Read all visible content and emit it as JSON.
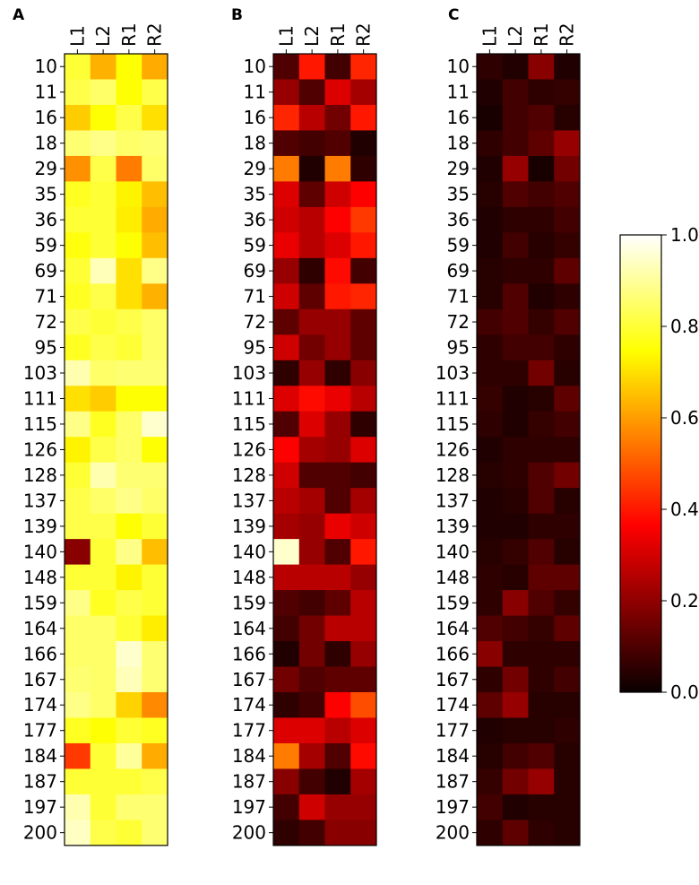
{
  "chart_data": [
    {
      "type": "heatmap",
      "panel_label": "A",
      "columns": [
        "L1",
        "L2",
        "R1",
        "R2"
      ],
      "rows": [
        "10",
        "11",
        "16",
        "18",
        "29",
        "35",
        "36",
        "59",
        "69",
        "71",
        "72",
        "95",
        "103",
        "111",
        "115",
        "126",
        "128",
        "137",
        "139",
        "140",
        "148",
        "159",
        "164",
        "166",
        "167",
        "174",
        "177",
        "184",
        "187",
        "197",
        "200"
      ],
      "values": [
        [
          0.8,
          0.63,
          0.75,
          0.62
        ],
        [
          0.82,
          0.85,
          0.75,
          0.82
        ],
        [
          0.67,
          0.75,
          0.82,
          0.7
        ],
        [
          0.86,
          0.88,
          0.85,
          0.86
        ],
        [
          0.58,
          0.82,
          0.55,
          0.85
        ],
        [
          0.78,
          0.8,
          0.73,
          0.65
        ],
        [
          0.8,
          0.8,
          0.72,
          0.62
        ],
        [
          0.76,
          0.8,
          0.75,
          0.65
        ],
        [
          0.8,
          0.93,
          0.7,
          0.88
        ],
        [
          0.78,
          0.82,
          0.7,
          0.63
        ],
        [
          0.82,
          0.8,
          0.82,
          0.85
        ],
        [
          0.78,
          0.82,
          0.8,
          0.85
        ],
        [
          0.92,
          0.85,
          0.86,
          0.86
        ],
        [
          0.7,
          0.67,
          0.75,
          0.75
        ],
        [
          0.88,
          0.78,
          0.85,
          0.95
        ],
        [
          0.73,
          0.82,
          0.85,
          0.75
        ],
        [
          0.8,
          0.92,
          0.86,
          0.86
        ],
        [
          0.82,
          0.85,
          0.88,
          0.85
        ],
        [
          0.82,
          0.82,
          0.75,
          0.8
        ],
        [
          0.18,
          0.8,
          0.88,
          0.65
        ],
        [
          0.8,
          0.8,
          0.73,
          0.8
        ],
        [
          0.88,
          0.78,
          0.82,
          0.8
        ],
        [
          0.85,
          0.85,
          0.8,
          0.72
        ],
        [
          0.85,
          0.85,
          0.95,
          0.86
        ],
        [
          0.86,
          0.85,
          0.93,
          0.86
        ],
        [
          0.88,
          0.85,
          0.68,
          0.57
        ],
        [
          0.78,
          0.75,
          0.8,
          0.78
        ],
        [
          0.45,
          0.8,
          0.9,
          0.62
        ],
        [
          0.8,
          0.8,
          0.8,
          0.82
        ],
        [
          0.92,
          0.8,
          0.86,
          0.86
        ],
        [
          0.94,
          0.82,
          0.8,
          0.86
        ]
      ]
    },
    {
      "type": "heatmap",
      "panel_label": "B",
      "columns": [
        "L1",
        "L2",
        "R1",
        "R2"
      ],
      "rows": [
        "10",
        "11",
        "16",
        "18",
        "29",
        "35",
        "36",
        "59",
        "69",
        "71",
        "72",
        "95",
        "103",
        "111",
        "115",
        "126",
        "128",
        "137",
        "139",
        "140",
        "148",
        "159",
        "164",
        "166",
        "167",
        "174",
        "177",
        "184",
        "187",
        "197",
        "200"
      ],
      "values": [
        [
          0.1,
          0.4,
          0.08,
          0.42
        ],
        [
          0.2,
          0.1,
          0.3,
          0.22
        ],
        [
          0.42,
          0.25,
          0.15,
          0.4
        ],
        [
          0.1,
          0.08,
          0.1,
          0.03
        ],
        [
          0.55,
          0.03,
          0.55,
          0.05
        ],
        [
          0.3,
          0.12,
          0.28,
          0.35
        ],
        [
          0.28,
          0.25,
          0.35,
          0.45
        ],
        [
          0.32,
          0.25,
          0.3,
          0.4
        ],
        [
          0.2,
          0.05,
          0.38,
          0.08
        ],
        [
          0.28,
          0.12,
          0.4,
          0.42
        ],
        [
          0.12,
          0.2,
          0.2,
          0.12
        ],
        [
          0.28,
          0.15,
          0.2,
          0.12
        ],
        [
          0.05,
          0.2,
          0.05,
          0.18
        ],
        [
          0.3,
          0.38,
          0.32,
          0.25
        ],
        [
          0.1,
          0.3,
          0.2,
          0.05
        ],
        [
          0.35,
          0.22,
          0.2,
          0.3
        ],
        [
          0.28,
          0.1,
          0.1,
          0.08
        ],
        [
          0.25,
          0.22,
          0.1,
          0.22
        ],
        [
          0.22,
          0.2,
          0.32,
          0.28
        ],
        [
          0.95,
          0.2,
          0.1,
          0.4
        ],
        [
          0.25,
          0.25,
          0.25,
          0.2
        ],
        [
          0.1,
          0.08,
          0.12,
          0.25
        ],
        [
          0.08,
          0.15,
          0.25,
          0.25
        ],
        [
          0.03,
          0.15,
          0.05,
          0.2
        ],
        [
          0.15,
          0.1,
          0.12,
          0.12
        ],
        [
          0.05,
          0.08,
          0.35,
          0.48
        ],
        [
          0.3,
          0.3,
          0.25,
          0.3
        ],
        [
          0.55,
          0.22,
          0.1,
          0.38
        ],
        [
          0.18,
          0.08,
          0.03,
          0.22
        ],
        [
          0.08,
          0.28,
          0.2,
          0.2
        ],
        [
          0.05,
          0.08,
          0.18,
          0.18
        ]
      ]
    },
    {
      "type": "heatmap",
      "panel_label": "C",
      "columns": [
        "L1",
        "L2",
        "R1",
        "R2"
      ],
      "rows": [
        "10",
        "11",
        "16",
        "18",
        "29",
        "35",
        "36",
        "59",
        "69",
        "71",
        "72",
        "95",
        "103",
        "111",
        "115",
        "126",
        "128",
        "137",
        "139",
        "140",
        "148",
        "159",
        "164",
        "166",
        "167",
        "174",
        "177",
        "184",
        "187",
        "197",
        "200"
      ],
      "values": [
        [
          0.05,
          0.03,
          0.18,
          0.03
        ],
        [
          0.03,
          0.08,
          0.05,
          0.06
        ],
        [
          0.02,
          0.08,
          0.1,
          0.04
        ],
        [
          0.05,
          0.08,
          0.12,
          0.2
        ],
        [
          0.03,
          0.2,
          0.02,
          0.15
        ],
        [
          0.04,
          0.1,
          0.08,
          0.1
        ],
        [
          0.03,
          0.05,
          0.05,
          0.08
        ],
        [
          0.03,
          0.08,
          0.04,
          0.06
        ],
        [
          0.04,
          0.05,
          0.05,
          0.12
        ],
        [
          0.04,
          0.1,
          0.03,
          0.05
        ],
        [
          0.08,
          0.1,
          0.06,
          0.1
        ],
        [
          0.05,
          0.08,
          0.08,
          0.05
        ],
        [
          0.05,
          0.05,
          0.15,
          0.04
        ],
        [
          0.06,
          0.03,
          0.04,
          0.12
        ],
        [
          0.05,
          0.03,
          0.06,
          0.08
        ],
        [
          0.03,
          0.05,
          0.05,
          0.05
        ],
        [
          0.04,
          0.05,
          0.1,
          0.15
        ],
        [
          0.03,
          0.04,
          0.1,
          0.04
        ],
        [
          0.03,
          0.03,
          0.05,
          0.05
        ],
        [
          0.04,
          0.06,
          0.1,
          0.04
        ],
        [
          0.05,
          0.04,
          0.12,
          0.12
        ],
        [
          0.05,
          0.18,
          0.1,
          0.06
        ],
        [
          0.1,
          0.08,
          0.06,
          0.12
        ],
        [
          0.18,
          0.05,
          0.05,
          0.05
        ],
        [
          0.05,
          0.15,
          0.05,
          0.08
        ],
        [
          0.12,
          0.2,
          0.04,
          0.04
        ],
        [
          0.03,
          0.04,
          0.04,
          0.05
        ],
        [
          0.04,
          0.08,
          0.1,
          0.04
        ],
        [
          0.06,
          0.15,
          0.2,
          0.04
        ],
        [
          0.08,
          0.03,
          0.04,
          0.04
        ],
        [
          0.05,
          0.12,
          0.05,
          0.04
        ]
      ]
    }
  ],
  "colorbar": {
    "colormap": "hot",
    "range": [
      0.0,
      1.0
    ],
    "ticks": [
      "0.0",
      "0.2",
      "0.4",
      "0.6",
      "0.8",
      "1.0"
    ]
  }
}
